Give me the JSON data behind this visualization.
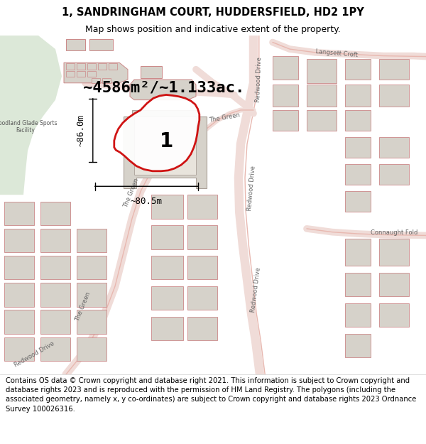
{
  "title_line1": "1, SANDRINGHAM COURT, HUDDERSFIELD, HD2 1PY",
  "title_line2": "Map shows position and indicative extent of the property.",
  "area_text": "~4586m²/~1.133ac.",
  "dimension_h": "~86.0m",
  "dimension_w": "~80.5m",
  "plot_number": "1",
  "footer_text": "Contains OS data © Crown copyright and database right 2021. This information is subject to Crown copyright and database rights 2023 and is reproduced with the permission of HM Land Registry. The polygons (including the associated geometry, namely x, y co-ordinates) are subject to Crown copyright and database rights 2023 Ordnance Survey 100026316.",
  "map_bg": "#f2f0eb",
  "green_color": "#dce8d8",
  "building_fill": "#d6d2ca",
  "building_edge": "#cc8888",
  "road_edge": "#e8b8b0",
  "property_edge": "#cc0000",
  "title_fontsize": 10.5,
  "subtitle_fontsize": 9,
  "footer_fontsize": 7.2,
  "area_fontsize": 16,
  "dim_fontsize": 9,
  "label_fontsize": 6
}
